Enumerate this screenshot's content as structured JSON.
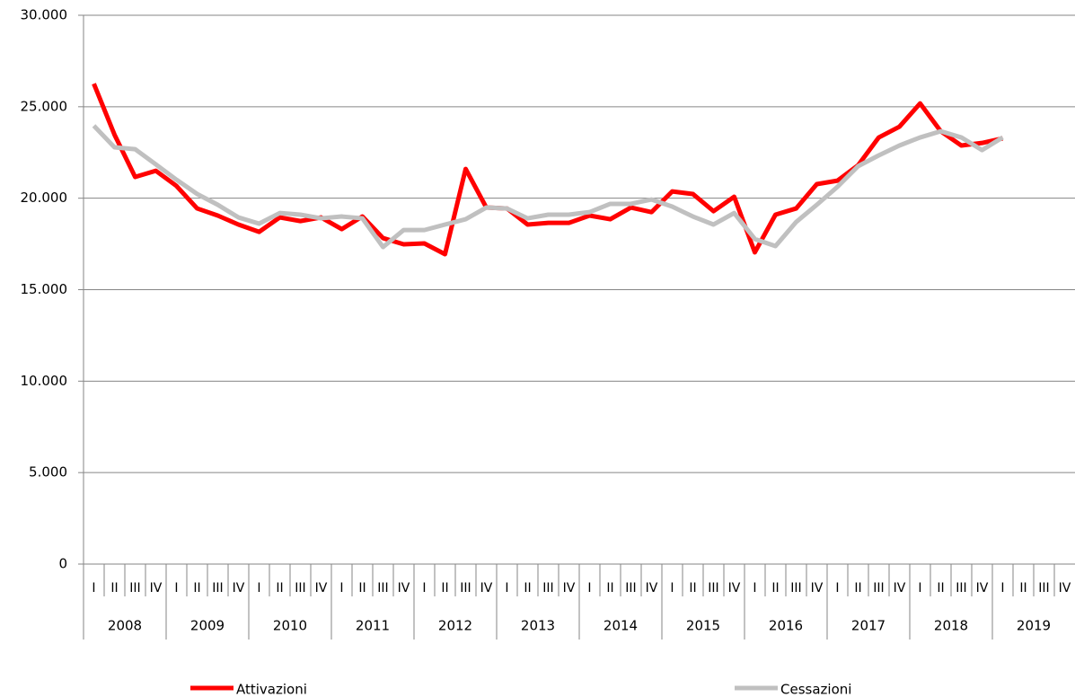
{
  "chart_data": {
    "type": "line",
    "categories": [
      "I",
      "II",
      "III",
      "IV",
      "I",
      "II",
      "III",
      "IV",
      "I",
      "II",
      "III",
      "IV",
      "I",
      "II",
      "III",
      "IV",
      "I",
      "II",
      "III",
      "IV",
      "I",
      "II",
      "III",
      "IV",
      "I",
      "II",
      "III",
      "IV",
      "I",
      "II",
      "III",
      "IV",
      "I",
      "II",
      "III",
      "IV",
      "I",
      "II",
      "III",
      "IV",
      "I",
      "II",
      "III",
      "IV",
      "I",
      "II",
      "III",
      "IV"
    ],
    "years": [
      "2008",
      "2009",
      "2010",
      "2011",
      "2012",
      "2013",
      "2014",
      "2015",
      "2016",
      "2017",
      "2018",
      "2019"
    ],
    "series": [
      {
        "name": "Attivazioni",
        "color": "#ff0000",
        "values": [
          26260,
          23470,
          21160,
          21500,
          20670,
          19440,
          19050,
          18560,
          18160,
          18950,
          18750,
          18950,
          18310,
          19000,
          17820,
          17480,
          17530,
          16940,
          21600,
          19490,
          19440,
          18560,
          18650,
          18650,
          19050,
          18850,
          19490,
          19240,
          20370,
          20230,
          19290,
          20080,
          17040,
          19100,
          19440,
          20770,
          20960,
          21800,
          23320,
          23910,
          25180,
          23660,
          22880,
          23020,
          23270,
          null,
          null,
          null
        ]
      },
      {
        "name": "Cessazioni",
        "color": "#c0c0c0",
        "values": [
          23960,
          22780,
          22680,
          21850,
          21010,
          20230,
          19640,
          18950,
          18610,
          19190,
          19100,
          18900,
          19000,
          18900,
          17330,
          18260,
          18260,
          18560,
          18850,
          19490,
          19440,
          18900,
          19100,
          19100,
          19240,
          19690,
          19690,
          19930,
          19540,
          19000,
          18560,
          19190,
          17770,
          17380,
          18700,
          19640,
          20620,
          21750,
          22340,
          22880,
          23320,
          23660,
          23320,
          22630,
          23320,
          null,
          null,
          null
        ]
      }
    ],
    "ylim": [
      0,
      30000
    ],
    "yticks": [
      0,
      {
        "value": 5000,
        "label": "5.000"
      },
      {
        "value": 10000,
        "label": "10.000"
      },
      {
        "value": 15000,
        "label": "15.000"
      },
      {
        "value": 20000,
        "label": "20.000"
      },
      {
        "value": 25000,
        "label": "25.000"
      },
      {
        "value": 30000,
        "label": "30.000"
      }
    ],
    "grid": true
  }
}
